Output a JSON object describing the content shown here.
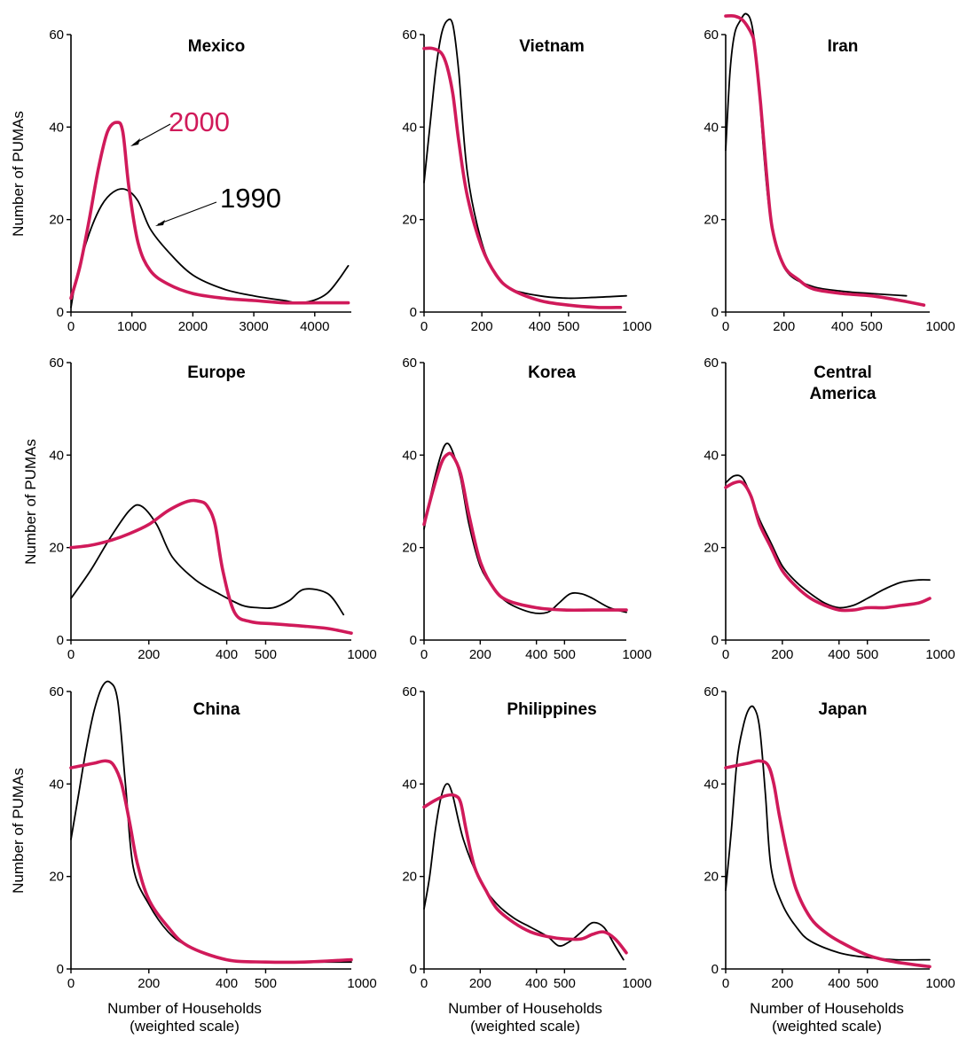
{
  "colors": {
    "s1990": "#000000",
    "s2000": "#d01a5a"
  },
  "y_label": "Number of PUMAs",
  "x_label_line1": "Number of Households",
  "x_label_line2": "(weighted scale)",
  "annotations": {
    "label_2000": "2000",
    "label_1990": "1990"
  },
  "chart_data": [
    {
      "type": "line",
      "title": "Mexico",
      "title2": "",
      "x_ticks": [
        0,
        1000,
        2000,
        3000,
        4000
      ],
      "xlim": [
        0,
        4600
      ],
      "y_ticks": [
        0,
        20,
        40,
        60
      ],
      "ylim": [
        0,
        60
      ],
      "y_tick_labels": [
        "0",
        "20",
        "40",
        "60"
      ],
      "series": [
        {
          "name": "1990",
          "x": [
            0,
            100,
            300,
            500,
            700,
            900,
            1100,
            1300,
            1600,
            2000,
            2500,
            3000,
            3500,
            3800,
            4200,
            4550
          ],
          "y": [
            1,
            8,
            17,
            23,
            26,
            26.5,
            24,
            18,
            13,
            8,
            5,
            3.5,
            2.5,
            2,
            4,
            10
          ]
        },
        {
          "name": "2000",
          "x": [
            0,
            150,
            300,
            450,
            600,
            750,
            850,
            950,
            1100,
            1300,
            1600,
            2000,
            2500,
            3000,
            3500,
            4000,
            4550
          ],
          "y": [
            3,
            10,
            20,
            31,
            39,
            41,
            39,
            27,
            15,
            9,
            6,
            4,
            3,
            2.5,
            2,
            2,
            2
          ]
        }
      ]
    },
    {
      "type": "line",
      "title": "Vietnam",
      "title2": "",
      "x_ticks": [
        0,
        200,
        400,
        500
      ],
      "x_extra": "1000",
      "xlim": [
        0,
        700
      ],
      "y_ticks": [
        0,
        20,
        40,
        60
      ],
      "ylim": [
        0,
        60
      ],
      "y_tick_labels": [
        "0",
        "20",
        "40",
        "60"
      ],
      "series": [
        {
          "name": "1990",
          "x": [
            0,
            20,
            40,
            60,
            80,
            100,
            120,
            150,
            200,
            250,
            300,
            400,
            500,
            600,
            700
          ],
          "y": [
            28,
            40,
            52,
            60,
            63,
            62,
            52,
            30,
            15,
            8,
            5,
            3.5,
            3,
            3.2,
            3.5
          ]
        },
        {
          "name": "2000",
          "x": [
            0,
            30,
            60,
            80,
            100,
            120,
            150,
            200,
            250,
            300,
            400,
            500,
            600,
            680
          ],
          "y": [
            57,
            57,
            56,
            53,
            47,
            37,
            25,
            14,
            8,
            5,
            2.5,
            1.5,
            1,
            1
          ]
        }
      ]
    },
    {
      "type": "line",
      "title": "Iran",
      "title2": "",
      "x_ticks": [
        0,
        200,
        400,
        500
      ],
      "x_extra": "1000",
      "xlim": [
        0,
        700
      ],
      "y_ticks": [
        0,
        20,
        40,
        60
      ],
      "ylim": [
        0,
        60
      ],
      "y_tick_labels": [
        "0",
        "20",
        "40",
        "60"
      ],
      "series": [
        {
          "name": "1990",
          "x": [
            0,
            15,
            30,
            50,
            70,
            90,
            110,
            130,
            150,
            180,
            220,
            300,
            400,
            500,
            620
          ],
          "y": [
            35,
            52,
            60,
            63,
            64.5,
            62,
            52,
            35,
            22,
            13,
            8,
            5.5,
            4.5,
            4,
            3.5
          ]
        },
        {
          "name": "2000",
          "x": [
            0,
            30,
            60,
            90,
            100,
            120,
            140,
            160,
            200,
            250,
            300,
            400,
            500,
            600,
            680
          ],
          "y": [
            64,
            64,
            63,
            60,
            57,
            45,
            30,
            18,
            10,
            7,
            5,
            4,
            3.5,
            2.5,
            1.5
          ]
        }
      ]
    },
    {
      "type": "line",
      "title": "Europe",
      "title2": "",
      "x_ticks": [
        0,
        200,
        400,
        500
      ],
      "x_extra": "1000",
      "xlim": [
        0,
        720
      ],
      "y_ticks": [
        0,
        20,
        40,
        60
      ],
      "ylim": [
        0,
        60
      ],
      "y_tick_labels": [
        "0",
        "20",
        "40",
        "60"
      ],
      "series": [
        {
          "name": "1990",
          "x": [
            0,
            50,
            100,
            150,
            180,
            220,
            260,
            320,
            380,
            440,
            480,
            520,
            560,
            600,
            660,
            700
          ],
          "y": [
            9,
            15,
            22,
            28,
            29,
            25,
            18,
            13,
            10,
            7.5,
            7,
            7,
            8.5,
            11,
            10,
            5.5
          ]
        },
        {
          "name": "2000",
          "x": [
            0,
            50,
            100,
            150,
            200,
            250,
            300,
            330,
            350,
            370,
            390,
            420,
            460,
            520,
            600,
            660,
            720
          ],
          "y": [
            20,
            20.5,
            21.5,
            23,
            25,
            28,
            30,
            30,
            29,
            25,
            15,
            6,
            4,
            3.5,
            3,
            2.5,
            1.5
          ]
        }
      ]
    },
    {
      "type": "line",
      "title": "Korea",
      "title2": "",
      "x_ticks": [
        0,
        200,
        400,
        500
      ],
      "x_extra": "1000",
      "xlim": [
        0,
        720
      ],
      "y_ticks": [
        0,
        20,
        40,
        60
      ],
      "ylim": [
        0,
        60
      ],
      "y_tick_labels": [
        "0",
        "20",
        "40",
        "60"
      ],
      "series": [
        {
          "name": "1990",
          "x": [
            0,
            30,
            60,
            80,
            100,
            130,
            160,
            200,
            250,
            300,
            380,
            440,
            480,
            520,
            560,
            600,
            660,
            720
          ],
          "y": [
            24,
            33,
            40,
            42.5,
            41,
            35,
            25,
            16,
            11,
            8,
            6,
            6,
            8,
            10,
            10,
            9,
            7,
            6
          ]
        },
        {
          "name": "2000",
          "x": [
            0,
            30,
            60,
            80,
            100,
            130,
            160,
            200,
            250,
            300,
            400,
            500,
            600,
            720
          ],
          "y": [
            25,
            32,
            38,
            40,
            40,
            36,
            27,
            17,
            11,
            8.5,
            7,
            6.5,
            6.5,
            6.5
          ]
        }
      ]
    },
    {
      "type": "line",
      "title": "Central",
      "title2": "America",
      "x_ticks": [
        0,
        200,
        400,
        500
      ],
      "x_extra": "1000",
      "xlim": [
        0,
        720
      ],
      "y_ticks": [
        0,
        20,
        40,
        60
      ],
      "ylim": [
        0,
        60
      ],
      "y_tick_labels": [
        "0",
        "20",
        "40",
        "60"
      ],
      "series": [
        {
          "name": "1990",
          "x": [
            0,
            30,
            60,
            90,
            120,
            160,
            200,
            250,
            300,
            350,
            400,
            450,
            500,
            560,
            620,
            680,
            720
          ],
          "y": [
            34,
            35.5,
            35,
            31,
            26,
            21,
            16,
            12.5,
            10,
            8,
            7,
            7.5,
            9,
            11,
            12.5,
            13,
            13
          ]
        },
        {
          "name": "2000",
          "x": [
            0,
            30,
            60,
            90,
            120,
            160,
            200,
            250,
            300,
            350,
            400,
            450,
            500,
            560,
            620,
            680,
            720
          ],
          "y": [
            33,
            34,
            34,
            31,
            25,
            20,
            15,
            11.5,
            9,
            7.5,
            6.5,
            6.5,
            7,
            7,
            7.5,
            8,
            9
          ]
        }
      ]
    },
    {
      "type": "line",
      "title": "China",
      "title2": "",
      "x_ticks": [
        0,
        200,
        400,
        500
      ],
      "x_extra": "1000",
      "xlim": [
        0,
        720
      ],
      "y_ticks": [
        0,
        20,
        40,
        60
      ],
      "ylim": [
        0,
        60
      ],
      "y_tick_labels": [
        "0",
        "20",
        "40",
        "60"
      ],
      "series": [
        {
          "name": "1990",
          "x": [
            0,
            20,
            40,
            60,
            80,
            100,
            120,
            140,
            160,
            200,
            250,
            300,
            400,
            500,
            600,
            720
          ],
          "y": [
            28,
            38,
            48,
            56,
            61,
            62,
            58,
            40,
            22,
            14,
            8,
            5,
            2,
            1.5,
            1.5,
            1.5
          ]
        },
        {
          "name": "2000",
          "x": [
            0,
            30,
            60,
            90,
            110,
            130,
            150,
            170,
            200,
            250,
            300,
            400,
            500,
            600,
            720
          ],
          "y": [
            43.5,
            44,
            44.5,
            45,
            44,
            40,
            32,
            23,
            15,
            9,
            5,
            2,
            1.5,
            1.5,
            2
          ]
        }
      ]
    },
    {
      "type": "line",
      "title": "Philippines",
      "title2": "",
      "x_ticks": [
        0,
        200,
        400,
        500
      ],
      "x_extra": "1000",
      "xlim": [
        0,
        720
      ],
      "y_ticks": [
        0,
        20,
        40,
        60
      ],
      "ylim": [
        0,
        60
      ],
      "y_tick_labels": [
        "0",
        "20",
        "40",
        "60"
      ],
      "series": [
        {
          "name": "1990",
          "x": [
            0,
            20,
            40,
            60,
            80,
            100,
            140,
            200,
            260,
            320,
            380,
            440,
            480,
            520,
            560,
            600,
            640,
            680,
            710
          ],
          "y": [
            13,
            20,
            30,
            37,
            40,
            38,
            28,
            19,
            14,
            11,
            9,
            7,
            5,
            6,
            8,
            10,
            9,
            5,
            2
          ]
        },
        {
          "name": "2000",
          "x": [
            0,
            40,
            80,
            110,
            130,
            150,
            180,
            220,
            260,
            320,
            380,
            440,
            500,
            560,
            600,
            640,
            680,
            720
          ],
          "y": [
            35,
            36.5,
            37.5,
            37.5,
            36,
            30,
            22,
            17,
            13,
            10,
            8,
            7,
            6.5,
            6.5,
            7.5,
            8,
            6.5,
            3.5
          ]
        }
      ]
    },
    {
      "type": "line",
      "title": "Japan",
      "title2": "",
      "x_ticks": [
        0,
        200,
        400,
        500
      ],
      "x_extra": "1000",
      "xlim": [
        0,
        720
      ],
      "y_ticks": [
        0,
        20,
        40,
        60
      ],
      "ylim": [
        0,
        60
      ],
      "y_tick_labels": [
        "0",
        "20",
        "40",
        "60"
      ],
      "series": [
        {
          "name": "1990",
          "x": [
            0,
            20,
            40,
            60,
            80,
            100,
            120,
            140,
            160,
            200,
            250,
            300,
            400,
            500,
            600,
            720
          ],
          "y": [
            17,
            30,
            45,
            52,
            56,
            56.5,
            52,
            38,
            22,
            14,
            9,
            6,
            3.5,
            2.5,
            2,
            2
          ]
        },
        {
          "name": "2000",
          "x": [
            0,
            40,
            80,
            120,
            150,
            170,
            190,
            220,
            250,
            300,
            350,
            400,
            500,
            600,
            720
          ],
          "y": [
            43.5,
            44,
            44.5,
            45,
            44,
            40,
            33,
            24,
            17,
            11,
            8,
            6,
            3,
            1.5,
            0.5
          ]
        }
      ]
    }
  ]
}
